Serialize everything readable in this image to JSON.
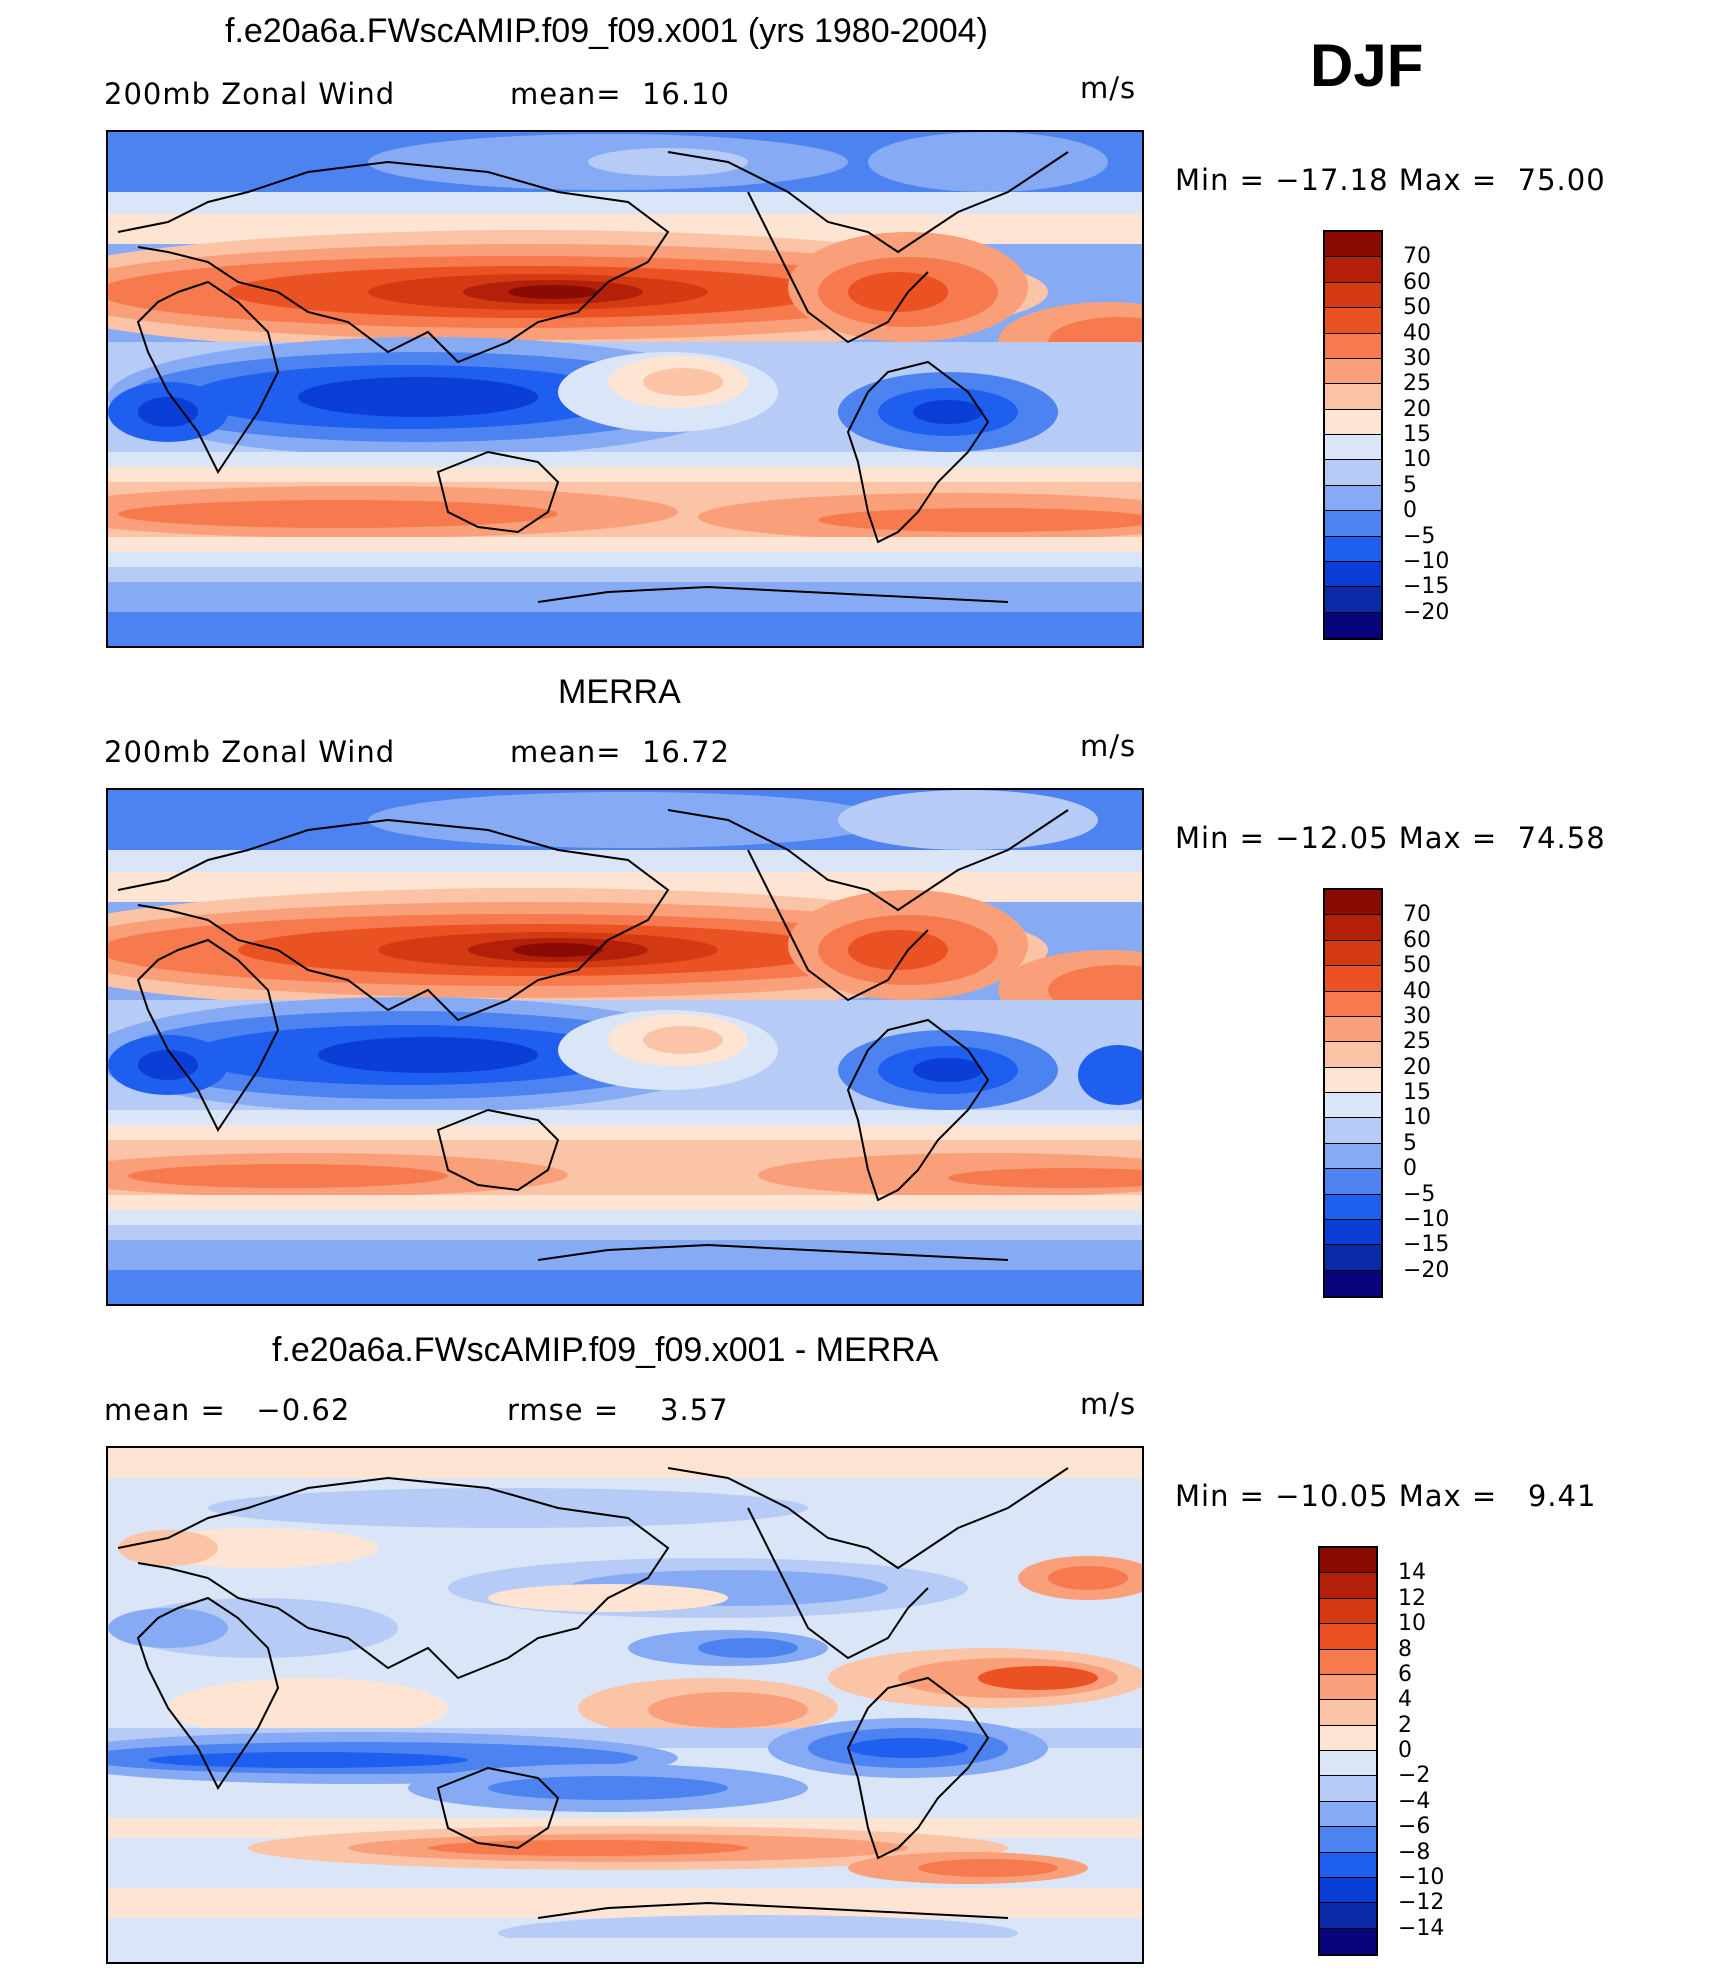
{
  "season": "DJF",
  "colors": {
    "main": [
      "#08047c",
      "#0a2aa8",
      "#0b3ed6",
      "#1f5ff0",
      "#4c83f0",
      "#86aaf4",
      "#b6ccf6",
      "#dae6f7",
      "#fde4d3",
      "#fbc4a6",
      "#f9a07a",
      "#f67a4e",
      "#ea5223",
      "#d43a12",
      "#b41f0a",
      "#8a0a04"
    ],
    "diff": [
      "#08047c",
      "#0a2aa8",
      "#0b3ed6",
      "#1f5ff0",
      "#4c83f0",
      "#86aaf4",
      "#b6ccf6",
      "#dae6f7",
      "#fde4d3",
      "#fbc4a6",
      "#f9a07a",
      "#f67a4e",
      "#ea5223",
      "#d43a12",
      "#b41f0a",
      "#8a0a04"
    ]
  },
  "panels": [
    {
      "title": "f.e20a6a.FWscAMIP.f09_f09.x001 (yrs 1980-2004)",
      "left_label": "200mb Zonal Wind",
      "mid_label": "mean=  16.10",
      "units": "m/s",
      "minmax": "Min = −17.18 Max =  75.00",
      "colorbar": [
        "70",
        "60",
        "50",
        "40",
        "30",
        "25",
        "20",
        "15",
        "10",
        "5",
        "0",
        "−5",
        "−10",
        "−15",
        "−20"
      ]
    },
    {
      "title": "MERRA",
      "left_label": "200mb Zonal Wind",
      "mid_label": "mean=  16.72",
      "units": "m/s",
      "minmax": "Min = −12.05 Max =  74.58",
      "colorbar": [
        "70",
        "60",
        "50",
        "40",
        "30",
        "25",
        "20",
        "15",
        "10",
        "5",
        "0",
        "−5",
        "−10",
        "−15",
        "−20"
      ]
    },
    {
      "title": "f.e20a6a.FWscAMIP.f09_f09.x001 - MERRA",
      "left_label": "mean =   −0.62",
      "mid_label": "rmse =    3.57",
      "units": "m/s",
      "minmax": "Min = −10.05 Max =   9.41",
      "colorbar": [
        "14",
        "12",
        "10",
        "8",
        "6",
        "4",
        "2",
        "0",
        "−2",
        "−4",
        "−6",
        "−8",
        "−10",
        "−12",
        "−14"
      ]
    }
  ]
}
